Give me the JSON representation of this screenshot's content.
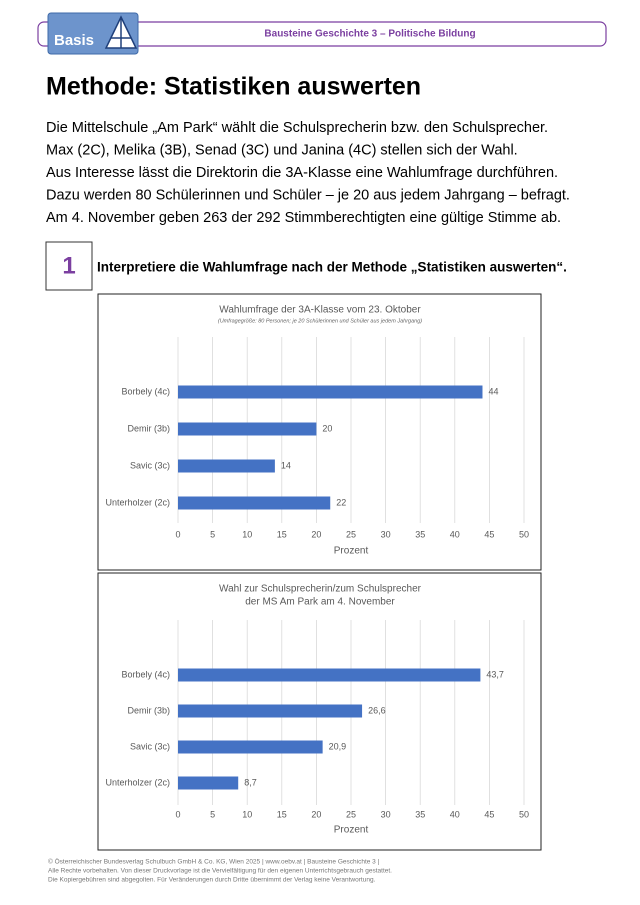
{
  "header": {
    "logo": "Basis",
    "series_title": "Bausteine Geschichte 3 – Politische Bildung"
  },
  "title": "Methode: Statistiken auswerten",
  "intro": [
    "Die Mittelschule „Am Park“ wählt die Schulsprecherin bzw. den Schulsprecher.",
    "Max (2C), Melika (3B), Senad (3C) und Janina (4C) stellen sich der Wahl.",
    "Aus Interesse lässt die Direktorin die 3A-Klasse eine Wahlumfrage durchführen.",
    "Dazu werden 80 Schülerinnen und Schüler – je 20 aus jedem Jahrgang – befragt.",
    "Am 4. November geben 263 der 292 Stimmberechtigten eine gültige Stimme ab."
  ],
  "task": {
    "number": "1",
    "text": "Interpretiere die Wahlumfrage nach der Methode „Statistiken auswerten“."
  },
  "chart_data": [
    {
      "type": "hbar",
      "title": [
        "Wahlumfrage der 3A-Klasse vom 23. Oktober"
      ],
      "subtitle": "(Umfragegröße: 80 Personen; je 20 Schülerinnen und Schüler aus jedem Jahrgang)",
      "categories": [
        "Borbely (4c)",
        "Demir (3b)",
        "Savic (3c)",
        "Unterholzer (2c)"
      ],
      "values": [
        44,
        20,
        14,
        22
      ],
      "color": "#4472c4",
      "xlim": [
        0,
        50
      ],
      "xticks": [
        0,
        5,
        10,
        15,
        20,
        25,
        30,
        35,
        40,
        45,
        50
      ],
      "xlabel": "Prozent",
      "grid": true
    },
    {
      "type": "hbar",
      "title": [
        "Wahl zur Schulsprecherin/zum Schulsprecher",
        "der MS Am Park am 4. November"
      ],
      "categories": [
        "Borbely (4c)",
        "Demir (3b)",
        "Savic (3c)",
        "Unterholzer (2c)"
      ],
      "values": [
        43.7,
        26.6,
        20.9,
        8.7
      ],
      "value_labels": [
        "43,7",
        "26,6",
        "20,9",
        "8,7"
      ],
      "color": "#4472c4",
      "xlim": [
        0,
        50
      ],
      "xticks": [
        0,
        5,
        10,
        15,
        20,
        25,
        30,
        35,
        40,
        45,
        50
      ],
      "xlabel": "Prozent",
      "grid": true
    }
  ],
  "footer": [
    "© Österreichischer Bundesverlag Schulbuch GmbH & Co. KG, Wien 2025 | www.oebv.at | Bausteine Geschichte 3 |",
    "Alle Rechte vorbehalten. Von dieser Druckvorlage ist die Vervielfältigung für den eigenen Unterrichtsgebrauch gestattet.",
    "Die Kopiergebühren sind abgegolten. Für Veränderungen durch Dritte übernimmt der Verlag keine Verantwortung."
  ]
}
